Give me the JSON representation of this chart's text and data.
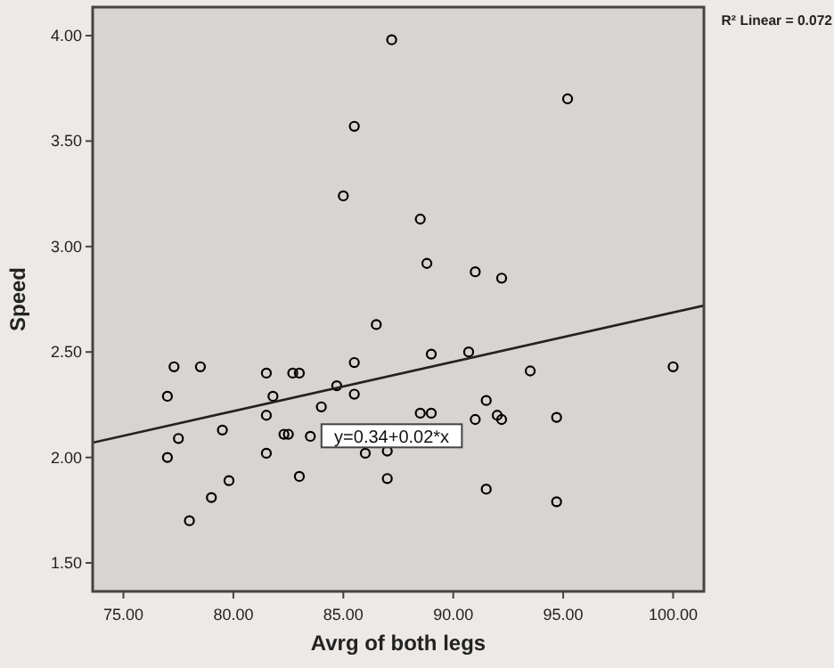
{
  "chart_data": {
    "type": "scatter",
    "xlabel": "Avrg of both legs",
    "ylabel": "Speed",
    "xlim": [
      73.6,
      101.4
    ],
    "ylim": [
      1.365,
      4.135
    ],
    "xticks": [
      {
        "value": 75,
        "label": "75.00"
      },
      {
        "value": 80,
        "label": "80.00"
      },
      {
        "value": 85,
        "label": "85.00"
      },
      {
        "value": 90,
        "label": "90.00"
      },
      {
        "value": 95,
        "label": "95.00"
      },
      {
        "value": 100,
        "label": "100.00"
      }
    ],
    "yticks": [
      {
        "value": 1.5,
        "label": "1.50"
      },
      {
        "value": 2,
        "label": "2.00"
      },
      {
        "value": 2.5,
        "label": "2.50"
      },
      {
        "value": 3,
        "label": "3.00"
      },
      {
        "value": 3.5,
        "label": "3.50"
      },
      {
        "value": 4,
        "label": "4.00"
      }
    ],
    "grid": false,
    "marker": "circle",
    "annotations": [
      "R² Linear = 0.072",
      {
        "text": "y=0.34+0.02*x",
        "x": 87.2,
        "y": 2.09
      }
    ],
    "series": [
      {
        "color": "#000000",
        "x": [
          87.2,
          95.2,
          85.5,
          85.0,
          88.5,
          88.8,
          86.5,
          89.0,
          91.0,
          92.2,
          90.7,
          93.5,
          100.0,
          91.5,
          89.0,
          91.0,
          92.0,
          92.2,
          94.7,
          91.5,
          94.7,
          77.3,
          78.5,
          81.5,
          82.7,
          83.0,
          85.5,
          84.7,
          85.5,
          77.0,
          81.8,
          84.0,
          81.5,
          88.5,
          77.5,
          79.5,
          82.3,
          82.5,
          83.5,
          77.0,
          81.5,
          86.0,
          87.0,
          79.8,
          83.0,
          87.0,
          79.0,
          78.0
        ],
        "values": [
          3.98,
          3.7,
          3.57,
          3.24,
          3.13,
          2.92,
          2.63,
          2.49,
          2.88,
          2.85,
          2.5,
          2.41,
          2.43,
          2.27,
          2.21,
          2.18,
          2.2,
          2.18,
          2.19,
          1.85,
          1.79,
          2.43,
          2.43,
          2.4,
          2.4,
          2.4,
          2.45,
          2.34,
          2.3,
          2.29,
          2.29,
          2.24,
          2.2,
          2.21,
          2.09,
          2.13,
          2.11,
          2.11,
          2.1,
          2.0,
          2.02,
          2.02,
          2.03,
          1.89,
          1.91,
          1.9,
          1.81,
          1.7
        ]
      },
      {
        "type": "line",
        "color": "#222222",
        "marker": "none",
        "line_style": "solid",
        "x": [
          73.6,
          101.4
        ],
        "values": [
          2.07,
          2.72
        ]
      }
    ]
  }
}
